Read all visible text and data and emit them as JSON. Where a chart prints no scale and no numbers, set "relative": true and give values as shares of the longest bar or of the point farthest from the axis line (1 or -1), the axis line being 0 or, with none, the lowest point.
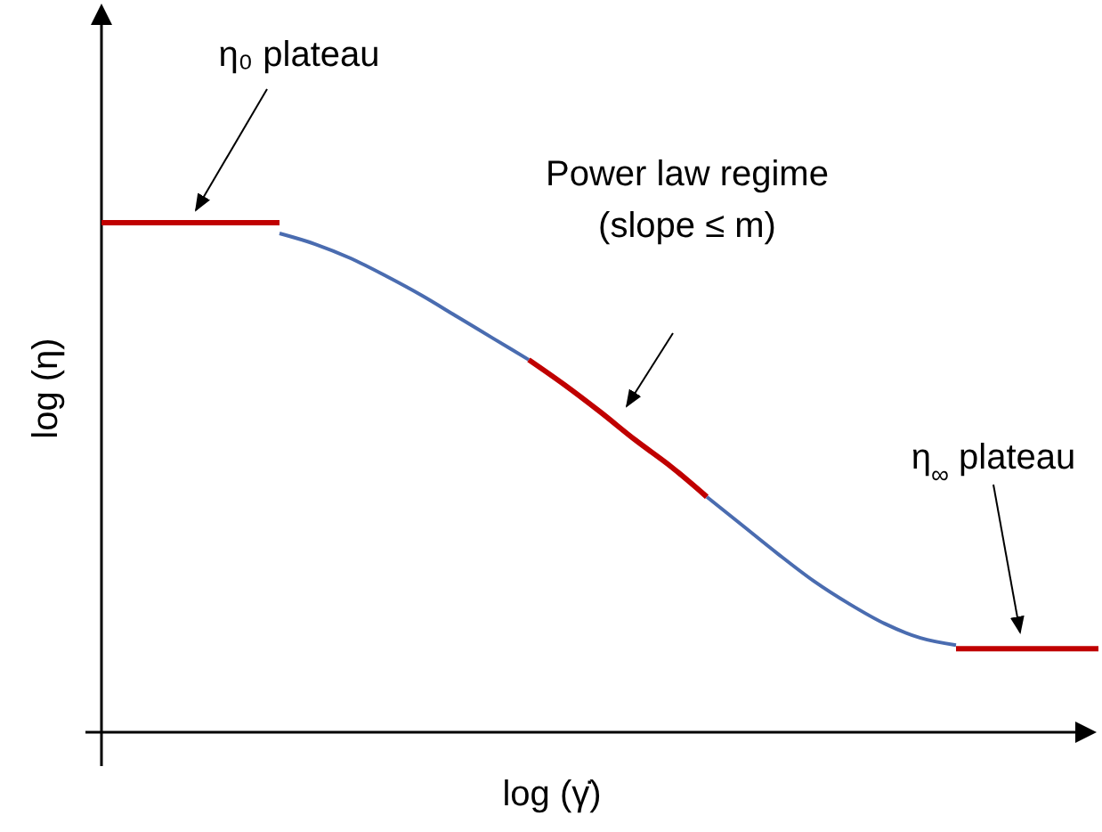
{
  "chart_data": {
    "type": "line",
    "relative": true,
    "xlabel": "log (γ̇)",
    "ylabel": "log (η)",
    "marker": "none",
    "line_style": "solid",
    "categories": [
      null,
      null,
      null,
      null,
      null,
      null,
      null,
      null,
      null,
      null,
      null,
      null,
      null,
      null,
      null,
      null,
      null,
      null,
      null,
      null,
      null,
      null,
      null,
      null,
      null,
      null,
      null,
      null,
      null
    ],
    "series": [
      {
        "color": "#4a6cb0",
        "values": [
          null,
          null,
          null,
          null,
          null,
          0.979,
          0.958,
          0.93,
          0.895,
          0.857,
          0.815,
          0.773,
          0.731,
          null,
          null,
          null,
          null,
          0.462,
          0.406,
          0.35,
          0.297,
          0.252,
          0.213,
          0.185,
          0.171,
          null,
          null,
          null,
          null
        ]
      },
      {
        "color": "#c00000",
        "values": [
          1,
          1,
          1,
          1,
          1,
          1,
          null,
          null,
          null,
          null,
          null,
          null,
          null,
          null,
          null,
          null,
          null,
          null,
          null,
          null,
          null,
          null,
          null,
          null,
          null,
          null,
          null,
          null,
          null
        ]
      },
      {
        "color": "#c00000",
        "values": [
          null,
          null,
          null,
          null,
          null,
          null,
          null,
          null,
          null,
          null,
          null,
          null,
          0.731,
          0.682,
          0.629,
          0.573,
          0.521,
          0.462,
          null,
          null,
          null,
          null,
          null,
          null,
          null,
          null,
          null,
          null,
          null
        ]
      },
      {
        "color": "#c00000",
        "values": [
          null,
          null,
          null,
          null,
          null,
          null,
          null,
          null,
          null,
          null,
          null,
          null,
          null,
          null,
          null,
          null,
          null,
          null,
          null,
          null,
          null,
          null,
          null,
          null,
          0.164,
          0.164,
          0.164,
          0.164,
          0.164
        ]
      }
    ],
    "annotations": [
      "η₀ plateau",
      "Power law regime\n(slope ≤ m)",
      "η$_{∞}$ plateau"
    ]
  }
}
